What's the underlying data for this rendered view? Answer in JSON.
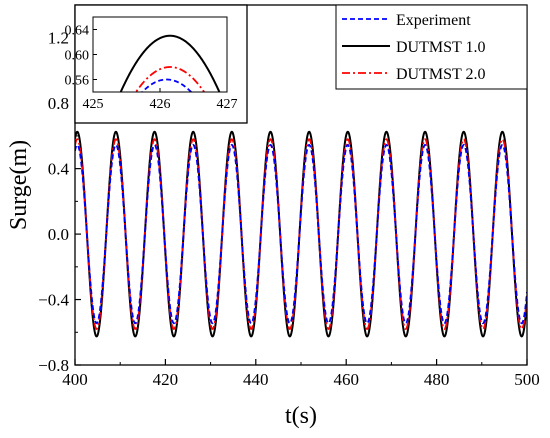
{
  "chart_data": [
    {
      "type": "line",
      "title": "",
      "xlabel": "t(s)",
      "ylabel": "Surge(m)",
      "xlim": [
        400,
        500
      ],
      "ylim": [
        -0.8,
        1.4
      ],
      "xticks": [
        "400",
        "420",
        "440",
        "460",
        "480",
        "500"
      ],
      "yticks": [
        "−0.8",
        "−0.4",
        "0.0",
        "0.4",
        "0.8",
        "1.2"
      ],
      "legend_position": "top-right",
      "period_s": 8.55,
      "series": [
        {
          "name": "Experiment",
          "color": "#0000ff",
          "style": "dashed",
          "amplitude": 0.545,
          "peak_time": 426.15
        },
        {
          "name": "DUTMST 1.0",
          "color": "#000000",
          "style": "solid",
          "amplitude": 0.625,
          "peak_time": 426.15
        },
        {
          "name": "DUTMST 2.0",
          "color": "#ff0000",
          "style": "dash-dot",
          "amplitude": 0.58,
          "peak_time": 426.15
        }
      ]
    },
    {
      "type": "line",
      "title": "",
      "xlim": [
        425,
        427
      ],
      "ylim": [
        0.54,
        0.66
      ],
      "xticks": [
        "425",
        "426",
        "427"
      ],
      "yticks": [
        "0.56",
        "0.60",
        "0.64"
      ],
      "series": [
        {
          "name": "Experiment",
          "color": "#0000ff",
          "style": "dashed",
          "peak_value": 0.56,
          "peak_time": 426.1
        },
        {
          "name": "DUTMST 1.0",
          "color": "#000000",
          "style": "solid",
          "peak_value": 0.63,
          "peak_time": 426.15
        },
        {
          "name": "DUTMST 2.0",
          "color": "#ff0000",
          "style": "dash-dot",
          "peak_value": 0.58,
          "peak_time": 426.15
        }
      ]
    }
  ]
}
